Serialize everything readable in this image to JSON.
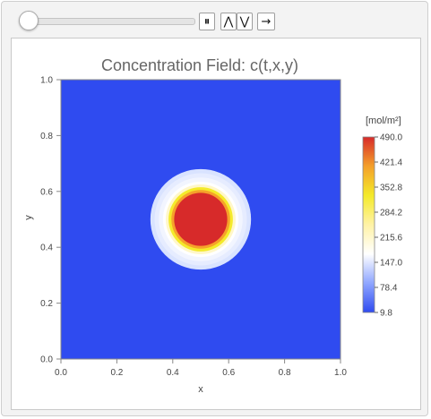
{
  "controls": {
    "slider_value": 0.0,
    "pause_glyph": "⏸",
    "faster_glyph": "⋀",
    "slower_glyph": "⋁",
    "step_glyph": "→"
  },
  "chart_data": {
    "type": "heatmap",
    "title": "Concentration Field: c(t,x,y)",
    "xlabel": "x",
    "ylabel": "y",
    "xlim": [
      0.0,
      1.0
    ],
    "ylim": [
      0.0,
      1.0
    ],
    "x_ticks": [
      "0.0",
      "0.2",
      "0.4",
      "0.6",
      "0.8",
      "1.0"
    ],
    "y_ticks": [
      "0.0",
      "0.2",
      "0.4",
      "0.6",
      "0.8",
      "1.0"
    ],
    "field": {
      "background_value": 9.8,
      "peak_center": [
        0.5,
        0.5
      ],
      "rings": [
        {
          "radius": 0.18,
          "value": 60.0,
          "color": "#d9e3ff"
        },
        {
          "radius": 0.165,
          "value": 120.0,
          "color": "#e6ecff"
        },
        {
          "radius": 0.15,
          "value": 180.0,
          "color": "#f2f5ff"
        },
        {
          "radius": 0.135,
          "value": 230.0,
          "color": "#ffffff"
        },
        {
          "radius": 0.125,
          "value": 300.0,
          "color": "#fff7c9"
        },
        {
          "radius": 0.115,
          "value": 360.0,
          "color": "#f4ea2a"
        },
        {
          "radius": 0.105,
          "value": 420.0,
          "color": "#f6a12a"
        },
        {
          "radius": 0.095,
          "value": 490.0,
          "color": "#d72a2a"
        }
      ]
    },
    "legend": {
      "unit_label": "[mol/m²]",
      "min": 9.8,
      "max": 490.0,
      "ticks": [
        "490.0",
        "421.4",
        "352.8",
        "284.2",
        "215.6",
        "147.0",
        "78.4",
        "9.8"
      ],
      "colors": [
        "#2f4bf0",
        "#8fa6ff",
        "#ffffff",
        "#fff2a6",
        "#f4ea2a",
        "#f4a02a",
        "#d72a2a"
      ]
    }
  }
}
